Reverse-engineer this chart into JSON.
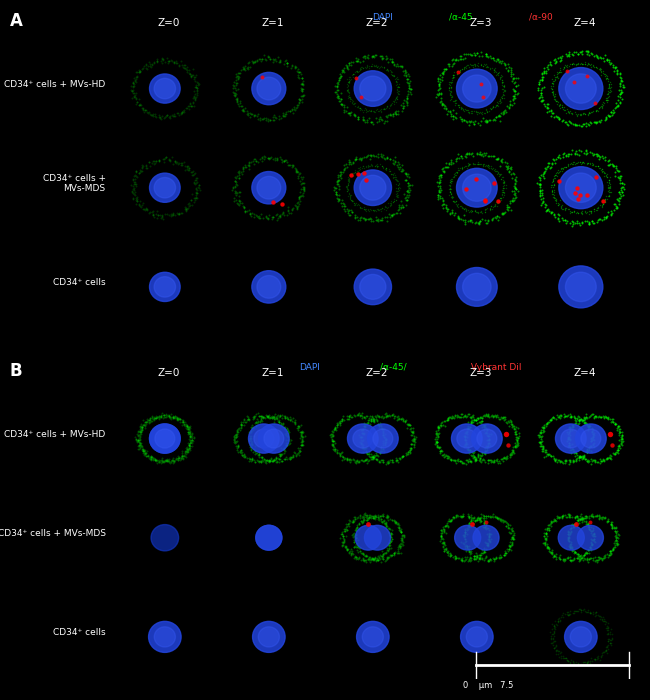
{
  "panel_A_label": "A",
  "panel_B_label": "B",
  "z_labels": [
    "Z=0",
    "Z=1",
    "Z=2",
    "Z=3",
    "Z=4"
  ],
  "row_labels_A": [
    "CD34⁺ cells + MVs-HD",
    "CD34⁺ cells + MVs-MDS",
    "CD34⁺ cells"
  ],
  "row_labels_B": [
    "CD34⁺ cells + MVs-HD",
    "CD34⁺ cells + MVs-MDS",
    "CD34⁺ cells"
  ],
  "legend_A": "DAPI/α-45/α-90",
  "legend_B": "DAPI/α-45/ Vybrant DiI",
  "legend_A_colors": [
    "#4444ff",
    "#00ff00",
    "#ff3333"
  ],
  "legend_B_colors": [
    "#4444ff",
    "#00ff00",
    "#ff3333"
  ],
  "scale_bar_label": "0    μm   7.5",
  "background_color": "#000000",
  "text_color": "#ffffff",
  "panel_label_color": "#ffffff",
  "figsize": [
    6.5,
    7.0
  ],
  "dpi": 100
}
